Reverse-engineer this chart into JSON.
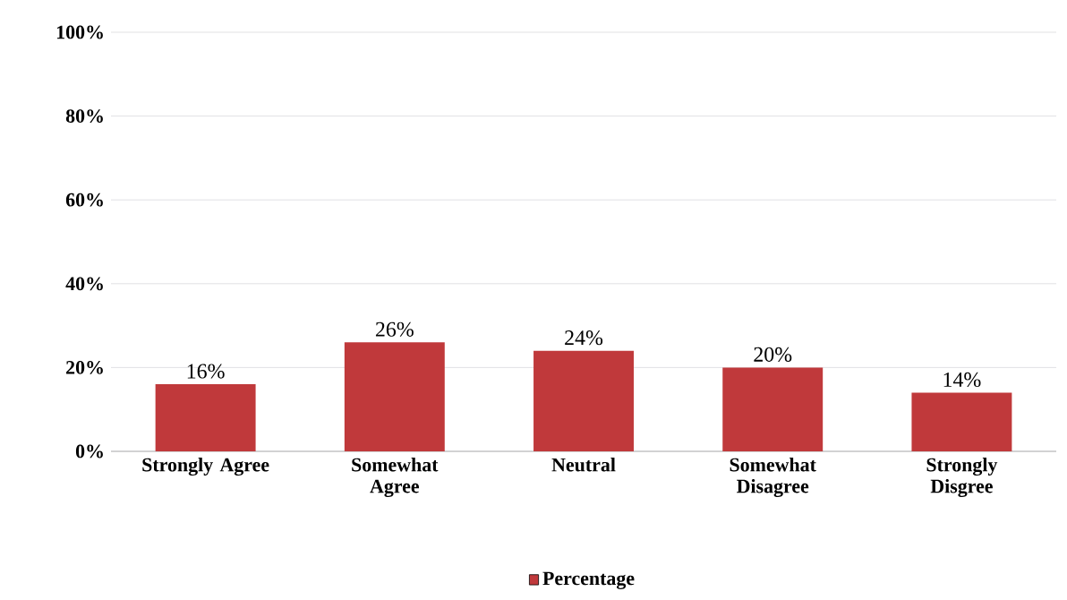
{
  "chart_data": {
    "type": "bar",
    "categories": [
      "Strongly Agree",
      "Somewhat Agree",
      "Neutral",
      "Somewhat Disagree",
      "Strongly Disgree"
    ],
    "series": [
      {
        "name": "Percentage",
        "color": "#c0393b",
        "values": [
          16,
          26,
          24,
          20,
          14
        ],
        "value_labels": [
          "16%",
          "26%",
          "24%",
          "20%",
          "14%"
        ]
      }
    ],
    "ylim": [
      0,
      100
    ],
    "yticks": [
      {
        "value": 0,
        "label": "0%"
      },
      {
        "value": 20,
        "label": "20%"
      },
      {
        "value": 40,
        "label": "40%"
      },
      {
        "value": 60,
        "label": "60%"
      },
      {
        "value": 80,
        "label": "80%"
      },
      {
        "value": 100,
        "label": "100%"
      }
    ],
    "grid": "y",
    "legend": "bottom"
  }
}
